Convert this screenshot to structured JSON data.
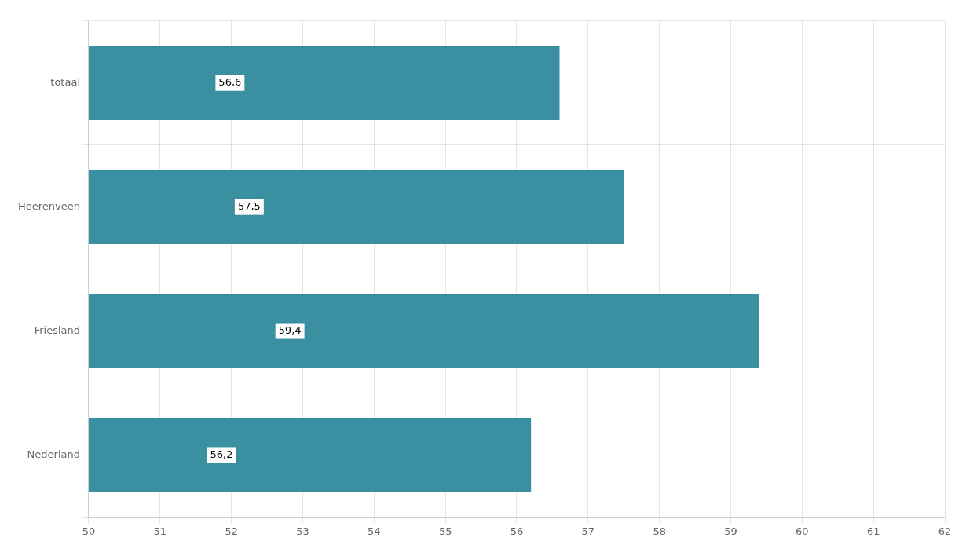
{
  "chart_data": {
    "type": "bar",
    "orientation": "horizontal",
    "categories": [
      "Nederland",
      "Friesland",
      "Heerenveen",
      "totaal"
    ],
    "values": [
      56.2,
      59.4,
      57.5,
      56.6
    ],
    "value_labels": [
      "56,2",
      "59,4",
      "57,5",
      "56,6"
    ],
    "data_labels": true,
    "color": "#3a8fa0",
    "xlim": [
      50,
      62
    ],
    "xticks": [
      50,
      51,
      52,
      53,
      54,
      55,
      56,
      57,
      58,
      59,
      60,
      61,
      62
    ],
    "grid": true
  }
}
